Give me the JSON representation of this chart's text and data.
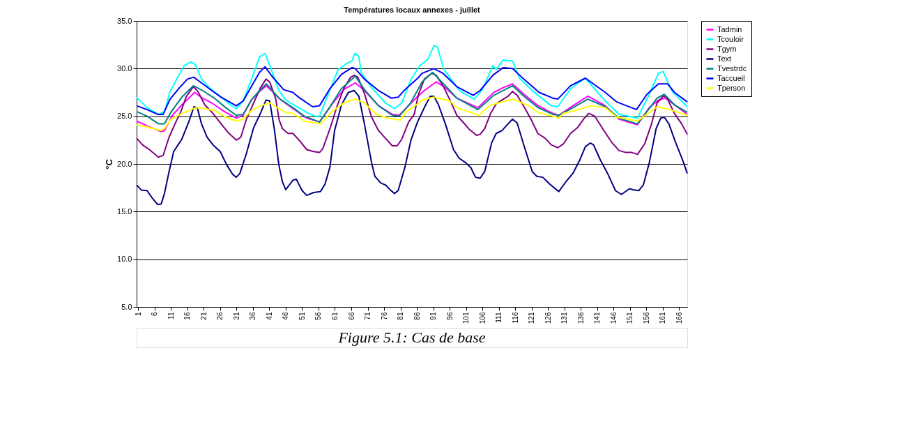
{
  "chart_data": {
    "type": "line",
    "title": "Températures locaux annexes - juillet",
    "ylabel": "°C",
    "xlim": [
      0.5,
      168.5
    ],
    "xticks": [
      1,
      6,
      11,
      16,
      21,
      26,
      31,
      36,
      41,
      46,
      51,
      56,
      61,
      66,
      71,
      76,
      81,
      86,
      91,
      96,
      101,
      106,
      111,
      116,
      121,
      126,
      131,
      136,
      141,
      146,
      151,
      156,
      161,
      166
    ],
    "ylim": [
      5,
      35
    ],
    "yticks": [
      {
        "value": 5,
        "label": "5.0"
      },
      {
        "value": 10,
        "label": "10.0"
      },
      {
        "value": 15,
        "label": "15.0"
      },
      {
        "value": 20,
        "label": "20.0"
      },
      {
        "value": 25,
        "label": "25.0"
      },
      {
        "value": 30,
        "label": "30.0"
      },
      {
        "value": 35,
        "label": "35.0"
      }
    ],
    "grid": "y",
    "legend": "right",
    "marker": "none",
    "line_style": "solid",
    "annotations": [
      "Figure 5.1: Cas de base"
    ],
    "series": [
      {
        "name": "Tadmin",
        "color": "#ff00ff",
        "x": [
          0.5,
          3.7,
          7.9,
          9,
          11.4,
          14.3,
          18.2,
          20.6,
          23.4,
          27.7,
          30.9,
          33,
          35.5,
          38,
          40.1,
          44.6,
          48.2,
          52.4,
          56.3,
          60.2,
          63.7,
          67.2,
          70,
          74.3,
          78.5,
          80.6,
          86.3,
          88.3,
          91.9,
          94.7,
          98.2,
          104.6,
          109.5,
          112.3,
          115.2,
          118.7,
          123,
          127.5,
          129.3,
          133.6,
          138.2,
          143.5,
          147.7,
          153.3,
          156.9,
          159.7,
          161.8,
          164.6,
          168.5
        ],
        "values": [
          24.5,
          24.0,
          23.4,
          23.5,
          25.1,
          26.2,
          27.5,
          26.9,
          26.4,
          25.4,
          24.8,
          25.1,
          26.7,
          27.6,
          28.2,
          26.7,
          25.8,
          24.8,
          24.4,
          26.3,
          27.8,
          28.5,
          27.7,
          26.1,
          25.2,
          25.1,
          27.1,
          27.7,
          28.6,
          28.0,
          26.9,
          25.9,
          27.5,
          28.0,
          28.4,
          27.3,
          26.1,
          25.3,
          25.1,
          26.1,
          27.1,
          26.1,
          24.7,
          24.1,
          25.9,
          26.7,
          26.9,
          26.2,
          25.2
        ]
      },
      {
        "name": "Tcouloir",
        "color": "#00ffff",
        "x": [
          0.5,
          3.7,
          7.2,
          9,
          10.7,
          12.9,
          15,
          17.1,
          18.5,
          20.3,
          22.7,
          26.3,
          29.1,
          30.9,
          33,
          35.5,
          38,
          39.7,
          41.8,
          43.9,
          46,
          48.9,
          52.4,
          54.9,
          56.3,
          58.7,
          62,
          64.4,
          66.2,
          67.1,
          68.3,
          69,
          72.2,
          76.4,
          79.2,
          81.4,
          84.1,
          86.9,
          89.4,
          91.2,
          92.2,
          94.3,
          99,
          103.5,
          106,
          109.2,
          110.2,
          112.3,
          115.2,
          117.3,
          121.5,
          127,
          129,
          132.9,
          137.4,
          143.5,
          147.7,
          153.3,
          156.9,
          159.7,
          161.1,
          163.9,
          168.5
        ],
        "values": [
          27.0,
          25.9,
          25.2,
          25.5,
          27.6,
          29.0,
          30.3,
          30.7,
          30.4,
          28.9,
          28.0,
          27.0,
          26.2,
          25.8,
          26.6,
          28.8,
          31.2,
          31.6,
          29.7,
          27.7,
          26.7,
          26.1,
          25.4,
          25.0,
          25.0,
          27.1,
          29.9,
          30.5,
          30.8,
          31.6,
          31.3,
          29.6,
          28.0,
          26.4,
          25.8,
          26.4,
          28.8,
          30.3,
          31.0,
          32.4,
          32.3,
          29.9,
          27.7,
          26.8,
          27.8,
          30.3,
          29.9,
          30.9,
          30.8,
          29.0,
          27.6,
          26.1,
          26.0,
          27.9,
          29.0,
          26.6,
          25.2,
          24.8,
          27.3,
          29.5,
          29.7,
          27.6,
          26.0
        ]
      },
      {
        "name": "Tgym",
        "color": "#800080",
        "x": [
          0.5,
          2.3,
          4.4,
          7.2,
          8.6,
          10.4,
          12.2,
          14,
          15.7,
          17.8,
          19.2,
          21.3,
          23.8,
          26.3,
          28.4,
          30.9,
          32.3,
          34,
          36.2,
          38.3,
          40,
          41.1,
          42.9,
          44,
          45,
          46.7,
          48.2,
          50.3,
          52.4,
          54.5,
          56.3,
          57.3,
          59.5,
          61.6,
          63.7,
          65.8,
          66.9,
          68,
          70,
          72.2,
          74.3,
          76.4,
          78.5,
          80,
          81.4,
          83.5,
          85.2,
          86.5,
          88.3,
          90.5,
          91.9,
          94,
          96.1,
          98.2,
          100.3,
          102.1,
          104.2,
          105.3,
          106.7,
          108.5,
          110.2,
          112,
          113.8,
          115.2,
          116.6,
          118.7,
          120.8,
          122.9,
          125.1,
          127,
          129,
          130.7,
          132.9,
          135,
          137.1,
          138.5,
          140.3,
          142.7,
          145.6,
          147.7,
          149.8,
          151.6,
          153.3,
          155.5,
          157.6,
          159.3,
          161.1,
          162.2,
          164.6,
          166.8,
          168.5
        ],
        "values": [
          22.7,
          22.0,
          21.5,
          20.7,
          20.9,
          22.8,
          24.2,
          25.5,
          27.1,
          28.1,
          27.6,
          26.2,
          25.3,
          24.2,
          23.3,
          22.5,
          22.8,
          24.7,
          26.4,
          28.0,
          28.9,
          28.6,
          26.9,
          24.6,
          23.7,
          23.2,
          23.2,
          22.4,
          21.5,
          21.3,
          21.2,
          21.6,
          23.7,
          26.0,
          27.9,
          29.1,
          29.3,
          29.1,
          27.4,
          24.9,
          23.5,
          22.7,
          21.9,
          21.9,
          22.6,
          24.4,
          25.2,
          27.3,
          28.9,
          29.5,
          29.3,
          28.2,
          26.7,
          25.1,
          24.3,
          23.6,
          23.0,
          23.1,
          23.7,
          25.3,
          26.3,
          26.7,
          27.1,
          27.6,
          27.2,
          26.0,
          24.7,
          23.2,
          22.7,
          22.0,
          21.7,
          22.1,
          23.2,
          23.8,
          24.8,
          25.3,
          25.0,
          23.7,
          22.2,
          21.4,
          21.2,
          21.2,
          21.0,
          22.1,
          24.2,
          26.4,
          27.1,
          27.0,
          25.3,
          24.2,
          23.1
        ]
      },
      {
        "name": "Text",
        "color": "#000080",
        "x": [
          0.5,
          2,
          3.7,
          5.1,
          6.9,
          8,
          9,
          10.4,
          11.8,
          14.3,
          16.4,
          18,
          19,
          20.3,
          22,
          23.8,
          26,
          28,
          29.8,
          30.9,
          32,
          34,
          36.2,
          38,
          40,
          41.1,
          42.5,
          43.9,
          45,
          46,
          48.2,
          49.2,
          51,
          52.4,
          54.5,
          56.6,
          58,
          59.5,
          60.9,
          63,
          65.1,
          66.9,
          68.3,
          70,
          72.2,
          73.2,
          75,
          76.4,
          77.8,
          79.2,
          80.3,
          82.4,
          84.2,
          86.2,
          88.7,
          90.1,
          91.2,
          92.6,
          94.7,
          97.2,
          98.9,
          101,
          102.5,
          103.9,
          105.3,
          106.7,
          108.8,
          110.2,
          112,
          113.8,
          115.2,
          116.6,
          118.7,
          121.2,
          122.6,
          124.4,
          126.5,
          129.3,
          131.4,
          133.6,
          135.7,
          137.4,
          138.9,
          139.9,
          142,
          144.2,
          146.6,
          148.4,
          150.9,
          151.9,
          153.7,
          155.1,
          156.9,
          159,
          160.4,
          161.5,
          162.9,
          165,
          167.1,
          168.5
        ],
        "values": [
          17.8,
          17.25,
          17.2,
          16.5,
          15.75,
          15.8,
          16.9,
          19.2,
          21.3,
          22.6,
          24.4,
          26.0,
          25.9,
          24.2,
          22.8,
          22.0,
          21.3,
          19.9,
          18.9,
          18.6,
          19.0,
          21.1,
          23.8,
          25.1,
          26.7,
          26.6,
          23.7,
          19.9,
          18.1,
          17.3,
          18.3,
          18.4,
          17.2,
          16.7,
          17.0,
          17.1,
          17.9,
          19.7,
          23.5,
          26.2,
          27.5,
          27.7,
          27.1,
          24.2,
          20.1,
          18.7,
          18.0,
          17.8,
          17.3,
          16.9,
          17.2,
          19.7,
          22.5,
          24.4,
          26.2,
          27.1,
          27.1,
          26.2,
          24.2,
          21.5,
          20.6,
          20.1,
          19.6,
          18.6,
          18.5,
          19.2,
          22.2,
          23.2,
          23.5,
          24.2,
          24.7,
          24.3,
          21.9,
          19.2,
          18.7,
          18.6,
          17.9,
          17.1,
          18.1,
          19.0,
          20.4,
          21.8,
          22.2,
          22.0,
          20.4,
          19.0,
          17.2,
          16.8,
          17.4,
          17.3,
          17.2,
          17.8,
          20.1,
          23.7,
          24.8,
          24.9,
          24.2,
          22.2,
          20.4,
          19.0
        ]
      },
      {
        "name": "Tvestrdc",
        "color": "#008080",
        "x": [
          0.5,
          3.7,
          7.2,
          9,
          11.1,
          14.3,
          17.8,
          20.6,
          24.2,
          27.7,
          30.9,
          33,
          35.5,
          38,
          40.1,
          43.9,
          46,
          48.2,
          51.7,
          56.3,
          59.5,
          63,
          67.2,
          70,
          74.3,
          78.5,
          80.6,
          84.1,
          87.6,
          90.8,
          94.7,
          98.2,
          104.6,
          109.5,
          112.3,
          115.2,
          118.7,
          123,
          127.5,
          129.3,
          133.6,
          138.2,
          143.5,
          147.7,
          153.3,
          156.9,
          159.3,
          161.5,
          164.6,
          168.5
        ],
        "values": [
          25.5,
          25.0,
          24.2,
          24.2,
          25.5,
          27.0,
          28.2,
          27.7,
          26.9,
          25.9,
          25.1,
          25.2,
          26.7,
          27.7,
          28.4,
          26.9,
          26.4,
          25.9,
          25.0,
          24.4,
          26.0,
          27.9,
          29.2,
          27.8,
          26.1,
          25.1,
          25.0,
          26.4,
          28.6,
          29.6,
          28.2,
          26.9,
          25.7,
          27.2,
          27.7,
          28.2,
          27.1,
          25.9,
          25.2,
          25.1,
          25.9,
          26.8,
          26.0,
          24.8,
          24.2,
          25.8,
          26.9,
          27.3,
          26.2,
          25.4
        ]
      },
      {
        "name": "Taccueil",
        "color": "#0000ff",
        "x": [
          0.5,
          3.7,
          6.9,
          8.6,
          10.7,
          13.6,
          16,
          17.9,
          19.9,
          23.4,
          26.3,
          30.9,
          33,
          35.5,
          38,
          39.7,
          41.8,
          45.3,
          48.2,
          50.3,
          54.2,
          56.3,
          59.5,
          63,
          66.2,
          67.2,
          70,
          74.3,
          78.2,
          80.3,
          82.4,
          86.3,
          87.6,
          91.2,
          94,
          98.2,
          103.2,
          105.3,
          109.2,
          112.3,
          115.2,
          118,
          123.3,
          127.5,
          129,
          132.9,
          137.4,
          143.5,
          147,
          153,
          156.2,
          159.7,
          162.5,
          164.6,
          168.5
        ],
        "values": [
          26.1,
          25.7,
          25.2,
          25.2,
          26.8,
          28.0,
          28.9,
          29.1,
          28.6,
          27.7,
          27.0,
          26.1,
          26.6,
          28.1,
          29.6,
          30.2,
          29.2,
          27.8,
          27.5,
          26.9,
          26.0,
          26.1,
          27.9,
          29.4,
          30.1,
          30.0,
          28.9,
          27.7,
          26.9,
          27.0,
          27.8,
          29.0,
          29.5,
          30.0,
          29.5,
          28.1,
          27.2,
          27.7,
          29.3,
          30.1,
          30.0,
          29.1,
          27.5,
          26.9,
          26.8,
          28.2,
          29.0,
          27.5,
          26.5,
          25.7,
          27.3,
          28.4,
          28.4,
          27.5,
          26.5
        ]
      },
      {
        "name": "Tperson",
        "color": "#ffff00",
        "x": [
          0.5,
          3.7,
          7.9,
          9,
          10.7,
          14.3,
          18.5,
          21.3,
          24.2,
          27.7,
          30.9,
          33,
          35.5,
          38.3,
          41.1,
          43.9,
          46,
          48.2,
          51.7,
          56.6,
          60.2,
          63.7,
          67.2,
          70,
          73.6,
          77.1,
          81,
          82.8,
          86.3,
          87.6,
          91.2,
          96.1,
          98.2,
          101.8,
          104.9,
          108.1,
          110.9,
          115.5,
          120.1,
          123,
          127.5,
          129.3,
          130.7,
          134.3,
          139.2,
          143.5,
          147,
          153.3,
          156.2,
          159.3,
          163.2,
          168.5
        ],
        "values": [
          24.1,
          23.9,
          23.5,
          23.7,
          24.6,
          25.3,
          25.9,
          25.8,
          25.6,
          24.9,
          24.5,
          24.7,
          25.6,
          26.1,
          26.4,
          25.8,
          25.4,
          25.3,
          24.5,
          24.2,
          25.5,
          26.4,
          26.8,
          26.4,
          25.2,
          24.8,
          24.6,
          25.5,
          26.3,
          26.7,
          27.0,
          26.6,
          25.9,
          25.5,
          25.1,
          26.1,
          26.4,
          26.8,
          26.1,
          25.4,
          25.0,
          24.8,
          25.3,
          25.6,
          26.1,
          25.9,
          24.9,
          24.5,
          25.2,
          26.0,
          25.7,
          25.1
        ]
      }
    ]
  }
}
